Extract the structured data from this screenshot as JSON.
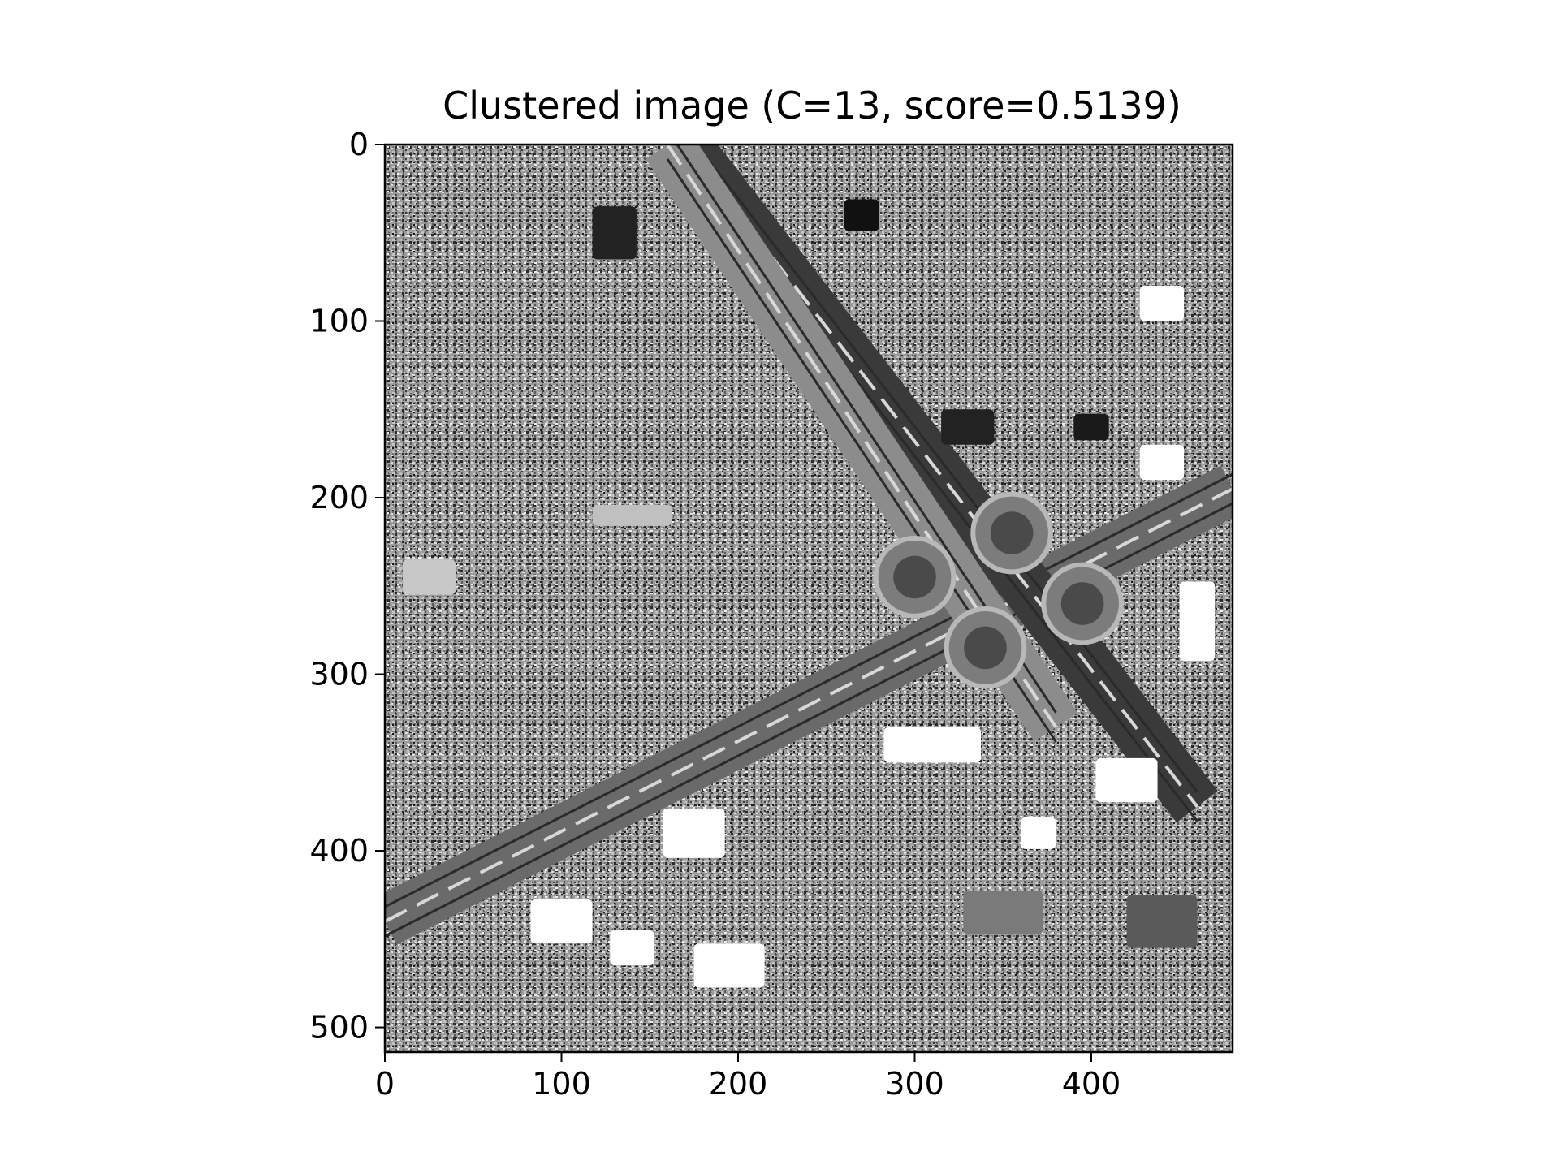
{
  "chart_data": {
    "type": "heatmap",
    "title": "Clustered image (C=13, score=0.5139)",
    "xlabel": "",
    "ylabel": "",
    "image_size": {
      "width": 480,
      "height": 514
    },
    "xlim": [
      0,
      480
    ],
    "ylim": [
      514,
      0
    ],
    "x_ticks": [
      0,
      100,
      200,
      300,
      400
    ],
    "y_ticks": [
      0,
      100,
      200,
      300,
      400,
      500
    ],
    "n_clusters": 13,
    "score": 0.5139,
    "colormap": "gray",
    "grid": false,
    "legend": "none",
    "features": [
      {
        "name": "diagonal-highway",
        "kind": "road",
        "from": [
          0,
          440
        ],
        "to": [
          480,
          195
        ],
        "shade": "#6a6a6a"
      },
      {
        "name": "rail-corridor",
        "kind": "road",
        "from": [
          170,
          0
        ],
        "to": [
          460,
          375
        ],
        "shade": "#3a3a3a"
      },
      {
        "name": "left-side-road",
        "kind": "road",
        "from": [
          160,
          0
        ],
        "to": [
          380,
          330
        ],
        "shade": "#8c8c8c"
      },
      {
        "name": "clover-loop-nw",
        "kind": "loop",
        "center": [
          300,
          245
        ],
        "radius": 22
      },
      {
        "name": "clover-loop-ne",
        "kind": "loop",
        "center": [
          355,
          220
        ],
        "radius": 22
      },
      {
        "name": "clover-loop-se",
        "kind": "loop",
        "center": [
          395,
          260
        ],
        "radius": 22
      },
      {
        "name": "clover-loop-sw",
        "kind": "loop",
        "center": [
          340,
          285
        ],
        "radius": 22
      },
      {
        "name": "bright-lot-1",
        "kind": "patch",
        "center": [
          310,
          340
        ],
        "size": [
          55,
          20
        ],
        "shade": "#ffffff"
      },
      {
        "name": "bright-lot-2",
        "kind": "patch",
        "center": [
          175,
          390
        ],
        "size": [
          35,
          28
        ],
        "shade": "#ffffff"
      },
      {
        "name": "bright-lot-3",
        "kind": "patch",
        "center": [
          100,
          440
        ],
        "size": [
          35,
          25
        ],
        "shade": "#ffffff"
      },
      {
        "name": "bright-lot-4",
        "kind": "patch",
        "center": [
          140,
          455
        ],
        "size": [
          25,
          20
        ],
        "shade": "#ffffff"
      },
      {
        "name": "bright-lot-5",
        "kind": "patch",
        "center": [
          195,
          465
        ],
        "size": [
          40,
          25
        ],
        "shade": "#ffffff"
      },
      {
        "name": "bright-lot-6",
        "kind": "patch",
        "center": [
          440,
          90
        ],
        "size": [
          25,
          20
        ],
        "shade": "#ffffff"
      },
      {
        "name": "bright-lot-7",
        "kind": "patch",
        "center": [
          440,
          180
        ],
        "size": [
          25,
          20
        ],
        "shade": "#ffffff"
      },
      {
        "name": "bright-lot-8",
        "kind": "patch",
        "center": [
          460,
          270
        ],
        "size": [
          20,
          45
        ],
        "shade": "#ffffff"
      },
      {
        "name": "bright-lot-9",
        "kind": "patch",
        "center": [
          420,
          360
        ],
        "size": [
          35,
          25
        ],
        "shade": "#ffffff"
      },
      {
        "name": "bright-lot-10",
        "kind": "patch",
        "center": [
          370,
          390
        ],
        "size": [
          20,
          18
        ],
        "shade": "#ffffff"
      },
      {
        "name": "dark-block-1",
        "kind": "patch",
        "center": [
          270,
          40
        ],
        "size": [
          20,
          18
        ],
        "shade": "#111111"
      },
      {
        "name": "dark-block-2",
        "kind": "patch",
        "center": [
          130,
          50
        ],
        "size": [
          25,
          30
        ],
        "shade": "#222222"
      },
      {
        "name": "dark-block-3",
        "kind": "patch",
        "center": [
          330,
          160
        ],
        "size": [
          30,
          20
        ],
        "shade": "#222222"
      },
      {
        "name": "dark-block-4",
        "kind": "patch",
        "center": [
          400,
          160
        ],
        "size": [
          20,
          15
        ],
        "shade": "#1a1a1a"
      },
      {
        "name": "mid-block-1",
        "kind": "patch",
        "center": [
          25,
          245
        ],
        "size": [
          30,
          20
        ],
        "shade": "#c8c8c8"
      },
      {
        "name": "mid-block-2",
        "kind": "patch",
        "center": [
          140,
          210
        ],
        "size": [
          45,
          12
        ],
        "shade": "#c0c0c0"
      },
      {
        "name": "mid-block-3",
        "kind": "patch",
        "center": [
          440,
          440
        ],
        "size": [
          40,
          30
        ],
        "shade": "#5a5a5a"
      },
      {
        "name": "mid-block-4",
        "kind": "patch",
        "center": [
          350,
          435
        ],
        "size": [
          45,
          25
        ],
        "shade": "#7a7a7a"
      }
    ]
  }
}
